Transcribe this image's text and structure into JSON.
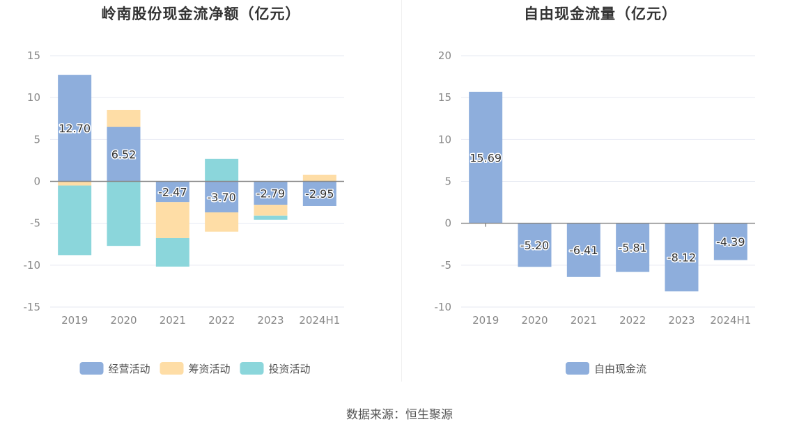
{
  "chart_data": [
    {
      "type": "bar",
      "stacked": true,
      "title": "岭南股份现金流净额（亿元）",
      "categories": [
        "2019",
        "2020",
        "2021",
        "2022",
        "2023",
        "2024H1"
      ],
      "ylim": [
        -15,
        15
      ],
      "yticks": [
        15,
        10,
        5,
        0,
        -5,
        -10,
        -15
      ],
      "grid": true,
      "legend_position": "bottom",
      "series": [
        {
          "name": "经营活动",
          "color": "#8eaedc",
          "values": [
            12.7,
            6.52,
            -2.47,
            -3.7,
            -2.79,
            -2.95
          ],
          "labels": [
            "12.70",
            "6.52",
            "-2.47",
            "-3.70",
            "-2.79",
            "-2.95"
          ]
        },
        {
          "name": "筹资活动",
          "color": "#fedda6",
          "values": [
            -0.5,
            2.0,
            -4.3,
            -2.3,
            -1.3,
            0.8
          ]
        },
        {
          "name": "投资活动",
          "color": "#8bd6db",
          "values": [
            -8.3,
            -7.7,
            -3.4,
            2.7,
            -0.5,
            0
          ]
        }
      ]
    },
    {
      "type": "bar",
      "title": "自由现金流量（亿元）",
      "categories": [
        "2019",
        "2020",
        "2021",
        "2022",
        "2023",
        "2024H1"
      ],
      "ylim": [
        -10,
        20
      ],
      "yticks": [
        20,
        15,
        10,
        5,
        0,
        -5,
        -10
      ],
      "grid": true,
      "legend_position": "bottom",
      "series": [
        {
          "name": "自由现金流",
          "color": "#8eaedc",
          "values": [
            15.69,
            -5.2,
            -6.41,
            -5.81,
            -8.12,
            -4.39
          ],
          "labels": [
            "15.69",
            "-5.20",
            "-6.41",
            "-5.81",
            "-8.12",
            "-4.39"
          ]
        }
      ]
    }
  ],
  "source": "数据来源：恒生聚源"
}
